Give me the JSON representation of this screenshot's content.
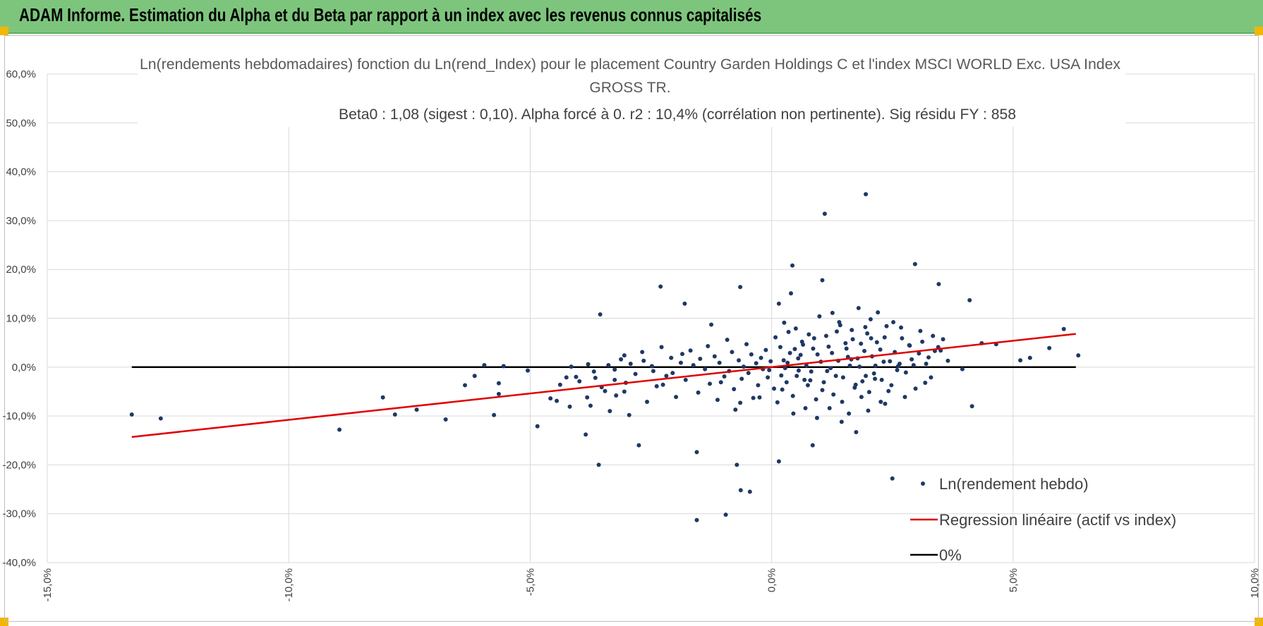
{
  "header": {
    "title": "ADAM Informe. Estimation du Alpha et du Beta par rapport à un index avec les revenus connus capitalisés"
  },
  "colors": {
    "header_bg": "#7dc57d",
    "points": "#1f3864",
    "regression": "#e00000",
    "zero_line": "#000000",
    "grid": "#d9d9d9"
  },
  "chart_data": {
    "type": "scatter",
    "title_lines": [
      "Ln(rendements hebdomadaires) fonction du Ln(rend_Index) pour le placement Country Garden Holdings C et l'index MSCI WORLD Exc. USA Index",
      "GROSS TR.",
      "Beta0 : 1,08 (sigest : 0,10). Alpha forcé à 0. r2 : 10,4% (corrélation non pertinente). Sig résidu FY : 858"
    ],
    "xlim": [
      -0.15,
      0.1
    ],
    "ylim": [
      -0.4,
      0.6
    ],
    "x_ticks": [
      -0.15,
      -0.1,
      -0.05,
      0.0,
      0.05,
      0.1
    ],
    "x_tick_labels": [
      "-15,0%",
      "-10,0%",
      "-5,0%",
      "0,0%",
      "5,0%",
      "10,0%"
    ],
    "y_ticks": [
      -0.4,
      -0.3,
      -0.2,
      -0.1,
      0.0,
      0.1,
      0.2,
      0.3,
      0.4,
      0.5,
      0.6
    ],
    "y_tick_labels": [
      "-40,0%",
      "-30,0%",
      "-20,0%",
      "-10,0%",
      "0,0%",
      "10,0%",
      "20,0%",
      "30,0%",
      "40,0%",
      "50,0%",
      "60,0%"
    ],
    "grid": true,
    "legend_position": "bottom-right",
    "series": [
      {
        "name": "Ln(rendement hebdo)",
        "kind": "scatter",
        "points": [
          [
            -0.1325,
            -0.097
          ],
          [
            -0.1265,
            -0.105
          ],
          [
            -0.0895,
            -0.128
          ],
          [
            -0.0805,
            -0.062
          ],
          [
            -0.078,
            -0.097
          ],
          [
            -0.0735,
            -0.087
          ],
          [
            -0.0675,
            -0.107
          ],
          [
            -0.0635,
            -0.037
          ],
          [
            -0.0615,
            -0.018
          ],
          [
            -0.0575,
            -0.098
          ],
          [
            -0.0565,
            -0.055
          ],
          [
            -0.0565,
            -0.033
          ],
          [
            -0.0555,
            0.002
          ],
          [
            -0.0505,
            -0.007
          ],
          [
            -0.0485,
            -0.121
          ],
          [
            -0.0445,
            -0.069
          ],
          [
            -0.0425,
            -0.021
          ],
          [
            -0.0415,
            0.001
          ],
          [
            -0.0405,
            -0.02
          ],
          [
            -0.0385,
            -0.138
          ],
          [
            -0.0375,
            -0.079
          ],
          [
            -0.0365,
            -0.022
          ],
          [
            -0.0345,
            -0.049
          ],
          [
            -0.0335,
            -0.09
          ],
          [
            -0.0325,
            -0.005
          ],
          [
            -0.0325,
            -0.026
          ],
          [
            -0.0305,
            0.024
          ],
          [
            -0.0305,
            -0.05
          ],
          [
            -0.0295,
            -0.098
          ],
          [
            -0.0275,
            -0.16
          ],
          [
            -0.0265,
            0.013
          ],
          [
            -0.0245,
            -0.008
          ],
          [
            -0.0225,
            -0.036
          ],
          [
            -0.0205,
            -0.012
          ],
          [
            -0.0185,
            0.027
          ],
          [
            -0.0155,
            -0.174
          ],
          [
            -0.0125,
            0.087
          ],
          [
            -0.0105,
            -0.031
          ],
          [
            -0.0095,
            -0.302
          ],
          [
            -0.0075,
            -0.087
          ],
          [
            -0.0065,
            0.164
          ],
          [
            -0.0065,
            -0.073
          ],
          [
            -0.0045,
            -0.255
          ],
          [
            -0.0025,
            -0.062
          ],
          [
            -0.0005,
            -0.006
          ],
          [
            0.0005,
            -0.044
          ],
          [
            0.0015,
            -0.193
          ],
          [
            0.0025,
            0.014
          ],
          [
            0.0035,
            0.072
          ],
          [
            0.0045,
            -0.095
          ],
          [
            0.0055,
            0.018
          ],
          [
            0.0065,
            0.046
          ],
          [
            0.0075,
            -0.037
          ],
          [
            0.0085,
            -0.16
          ],
          [
            0.0095,
            0.026
          ],
          [
            0.0105,
            0.178
          ],
          [
            0.0115,
            -0.008
          ],
          [
            0.0125,
            0.029
          ],
          [
            0.0135,
            0.073
          ],
          [
            0.0145,
            -0.112
          ],
          [
            0.0155,
            0.038
          ],
          [
            0.0165,
            0.016
          ],
          [
            0.0175,
            -0.133
          ],
          [
            0.0185,
            0.048
          ],
          [
            0.0195,
            -0.018
          ],
          [
            0.0205,
            0.098
          ],
          [
            0.0215,
            0.003
          ],
          [
            0.0225,
            0.036
          ],
          [
            0.0235,
            -0.075
          ],
          [
            0.0245,
            0.012
          ],
          [
            0.0265,
            0.007
          ],
          [
            0.0285,
            0.045
          ],
          [
            0.0305,
            0.028
          ],
          [
            0.0325,
            0.02
          ],
          [
            0.0345,
            0.041
          ],
          [
            0.0365,
            0.013
          ],
          [
            0.0395,
            -0.004
          ],
          [
            0.0435,
            0.049
          ],
          [
            0.0465,
            0.047
          ],
          [
            0.0515,
            0.014
          ],
          [
            0.0535,
            0.019
          ],
          [
            0.0575,
            0.039
          ],
          [
            0.0605,
            0.078
          ],
          [
            0.0635,
            0.024
          ],
          [
            0.0195,
            0.354
          ],
          [
            0.011,
            0.314
          ],
          [
            0.0297,
            0.211
          ],
          [
            0.0346,
            0.17
          ],
          [
            0.041,
            0.137
          ],
          [
            0.0043,
            0.208
          ],
          [
            0.004,
            0.151
          ],
          [
            0.0015,
            0.13
          ],
          [
            -0.023,
            0.165
          ],
          [
            -0.018,
            0.13
          ],
          [
            -0.0355,
            0.108
          ],
          [
            -0.038,
            0.006
          ],
          [
            -0.0595,
            0.004
          ],
          [
            -0.0358,
            -0.2
          ],
          [
            -0.0072,
            -0.2
          ],
          [
            -0.0155,
            -0.313
          ],
          [
            -0.0064,
            -0.252
          ],
          [
            0.025,
            -0.228
          ],
          [
            0.0415,
            -0.08
          ],
          [
            0.002,
            -0.017
          ],
          [
            0.0028,
            -0.002
          ],
          [
            0.0033,
            0.009
          ],
          [
            0.0048,
            0.037
          ],
          [
            0.0052,
            -0.018
          ],
          [
            0.006,
            0.025
          ],
          [
            0.0068,
            -0.026
          ],
          [
            0.0072,
            0.003
          ],
          [
            0.0082,
            -0.009
          ],
          [
            0.0088,
            0.059
          ],
          [
            0.0092,
            -0.066
          ],
          [
            0.0102,
            0.011
          ],
          [
            0.0108,
            -0.031
          ],
          [
            0.0118,
            0.042
          ],
          [
            0.0122,
            -0.002
          ],
          [
            0.0128,
            -0.056
          ],
          [
            0.0138,
            0.013
          ],
          [
            0.0142,
            0.086
          ],
          [
            0.0148,
            -0.021
          ],
          [
            0.0158,
            0.021
          ],
          [
            0.0162,
            0.003
          ],
          [
            0.0168,
            0.057
          ],
          [
            0.0172,
            -0.042
          ],
          [
            0.0178,
            0.018
          ],
          [
            0.0182,
            0.001
          ],
          [
            0.0188,
            -0.029
          ],
          [
            0.0192,
            0.033
          ],
          [
            0.0198,
            0.069
          ],
          [
            0.0202,
            -0.051
          ],
          [
            0.0208,
            0.022
          ],
          [
            0.0212,
            -0.013
          ],
          [
            0.0218,
            0.051
          ],
          [
            0.0228,
            -0.026
          ],
          [
            0.0232,
            0.011
          ],
          [
            0.0238,
            0.084
          ],
          [
            0.0248,
            -0.037
          ],
          [
            0.0255,
            0.031
          ],
          [
            0.0262,
            0.002
          ],
          [
            0.027,
            0.059
          ],
          [
            0.0278,
            -0.011
          ],
          [
            0.029,
            0.016
          ],
          [
            0.0298,
            -0.044
          ],
          [
            0.0312,
            0.052
          ],
          [
            0.032,
            0.007
          ],
          [
            0.033,
            -0.021
          ],
          [
            0.0338,
            0.033
          ],
          [
            0.0355,
            0.057
          ],
          [
            -0.0002,
            0.012
          ],
          [
            -0.0008,
            -0.021
          ],
          [
            -0.0012,
            0.035
          ],
          [
            -0.0018,
            -0.004
          ],
          [
            -0.0022,
            0.019
          ],
          [
            -0.0028,
            -0.037
          ],
          [
            -0.0032,
            0.008
          ],
          [
            -0.0038,
            -0.063
          ],
          [
            -0.0042,
            0.026
          ],
          [
            -0.0048,
            -0.012
          ],
          [
            -0.0052,
            0.047
          ],
          [
            -0.0058,
            0.001
          ],
          [
            -0.0062,
            -0.024
          ],
          [
            -0.0068,
            0.014
          ],
          [
            -0.0078,
            -0.045
          ],
          [
            -0.0082,
            0.031
          ],
          [
            -0.0088,
            -0.008
          ],
          [
            -0.0092,
            0.056
          ],
          [
            -0.0098,
            -0.019
          ],
          [
            -0.0108,
            0.009
          ],
          [
            -0.0112,
            -0.067
          ],
          [
            -0.0118,
            0.022
          ],
          [
            -0.0128,
            -0.034
          ],
          [
            -0.0132,
            0.043
          ],
          [
            -0.0138,
            -0.004
          ],
          [
            -0.0148,
            0.017
          ],
          [
            -0.0152,
            -0.052
          ],
          [
            -0.0162,
            0.004
          ],
          [
            -0.0168,
            0.034
          ],
          [
            -0.0178,
            -0.026
          ],
          [
            -0.0188,
            0.009
          ],
          [
            -0.0198,
            -0.061
          ],
          [
            -0.0208,
            0.019
          ],
          [
            -0.0218,
            -0.018
          ],
          [
            -0.0228,
            0.041
          ],
          [
            -0.0238,
            -0.039
          ],
          [
            -0.0248,
            0.002
          ],
          [
            -0.0258,
            -0.071
          ],
          [
            -0.0268,
            0.031
          ],
          [
            -0.0282,
            -0.014
          ],
          [
            -0.0292,
            0.007
          ],
          [
            -0.0302,
            -0.032
          ],
          [
            -0.0312,
            0.016
          ],
          [
            -0.0322,
            -0.058
          ],
          [
            -0.0338,
            0.004
          ],
          [
            -0.0352,
            -0.041
          ],
          [
            -0.0368,
            -0.009
          ],
          [
            -0.0382,
            -0.062
          ],
          [
            -0.0398,
            -0.029
          ],
          [
            -0.0418,
            -0.081
          ],
          [
            -0.0438,
            -0.036
          ],
          [
            -0.0458,
            -0.064
          ],
          [
            0.0008,
            0.061
          ],
          [
            0.0012,
            -0.072
          ],
          [
            0.0018,
            0.041
          ],
          [
            0.0022,
            -0.046
          ],
          [
            0.0026,
            0.091
          ],
          [
            0.0031,
            -0.031
          ],
          [
            0.0038,
            0.029
          ],
          [
            0.0044,
            -0.059
          ],
          [
            0.005,
            0.079
          ],
          [
            0.0056,
            -0.007
          ],
          [
            0.0063,
            0.052
          ],
          [
            0.007,
            -0.084
          ],
          [
            0.0077,
            0.067
          ],
          [
            0.008,
            -0.027
          ],
          [
            0.0086,
            0.038
          ],
          [
            0.0094,
            -0.104
          ],
          [
            0.0099,
            0.104
          ],
          [
            0.0105,
            -0.047
          ],
          [
            0.0113,
            0.064
          ],
          [
            0.012,
            -0.084
          ],
          [
            0.0126,
            0.111
          ],
          [
            0.0133,
            -0.018
          ],
          [
            0.014,
            0.092
          ],
          [
            0.0146,
            -0.071
          ],
          [
            0.0153,
            0.049
          ],
          [
            0.016,
            -0.095
          ],
          [
            0.0166,
            0.076
          ],
          [
            0.0174,
            -0.036
          ],
          [
            0.018,
            0.121
          ],
          [
            0.0186,
            -0.061
          ],
          [
            0.0194,
            0.082
          ],
          [
            0.02,
            -0.089
          ],
          [
            0.0206,
            0.059
          ],
          [
            0.0214,
            -0.024
          ],
          [
            0.022,
            0.112
          ],
          [
            0.0226,
            -0.071
          ],
          [
            0.0234,
            0.061
          ],
          [
            0.0242,
            -0.049
          ],
          [
            0.0252,
            0.092
          ],
          [
            0.026,
            -0.006
          ],
          [
            0.0268,
            0.081
          ],
          [
            0.0276,
            -0.061
          ],
          [
            0.0286,
            0.044
          ],
          [
            0.0294,
            0.004
          ],
          [
            0.0308,
            0.074
          ],
          [
            0.0318,
            -0.032
          ],
          [
            0.0334,
            0.064
          ],
          [
            0.035,
            0.034
          ]
        ]
      },
      {
        "name": "Regression linéaire (actif vs index)",
        "kind": "line",
        "x": [
          -0.1325,
          0.063
        ],
        "y": [
          -0.143,
          0.068
        ]
      },
      {
        "name": "0%",
        "kind": "line",
        "x": [
          -0.1325,
          0.063
        ],
        "y": [
          0.0,
          0.0
        ]
      }
    ]
  }
}
